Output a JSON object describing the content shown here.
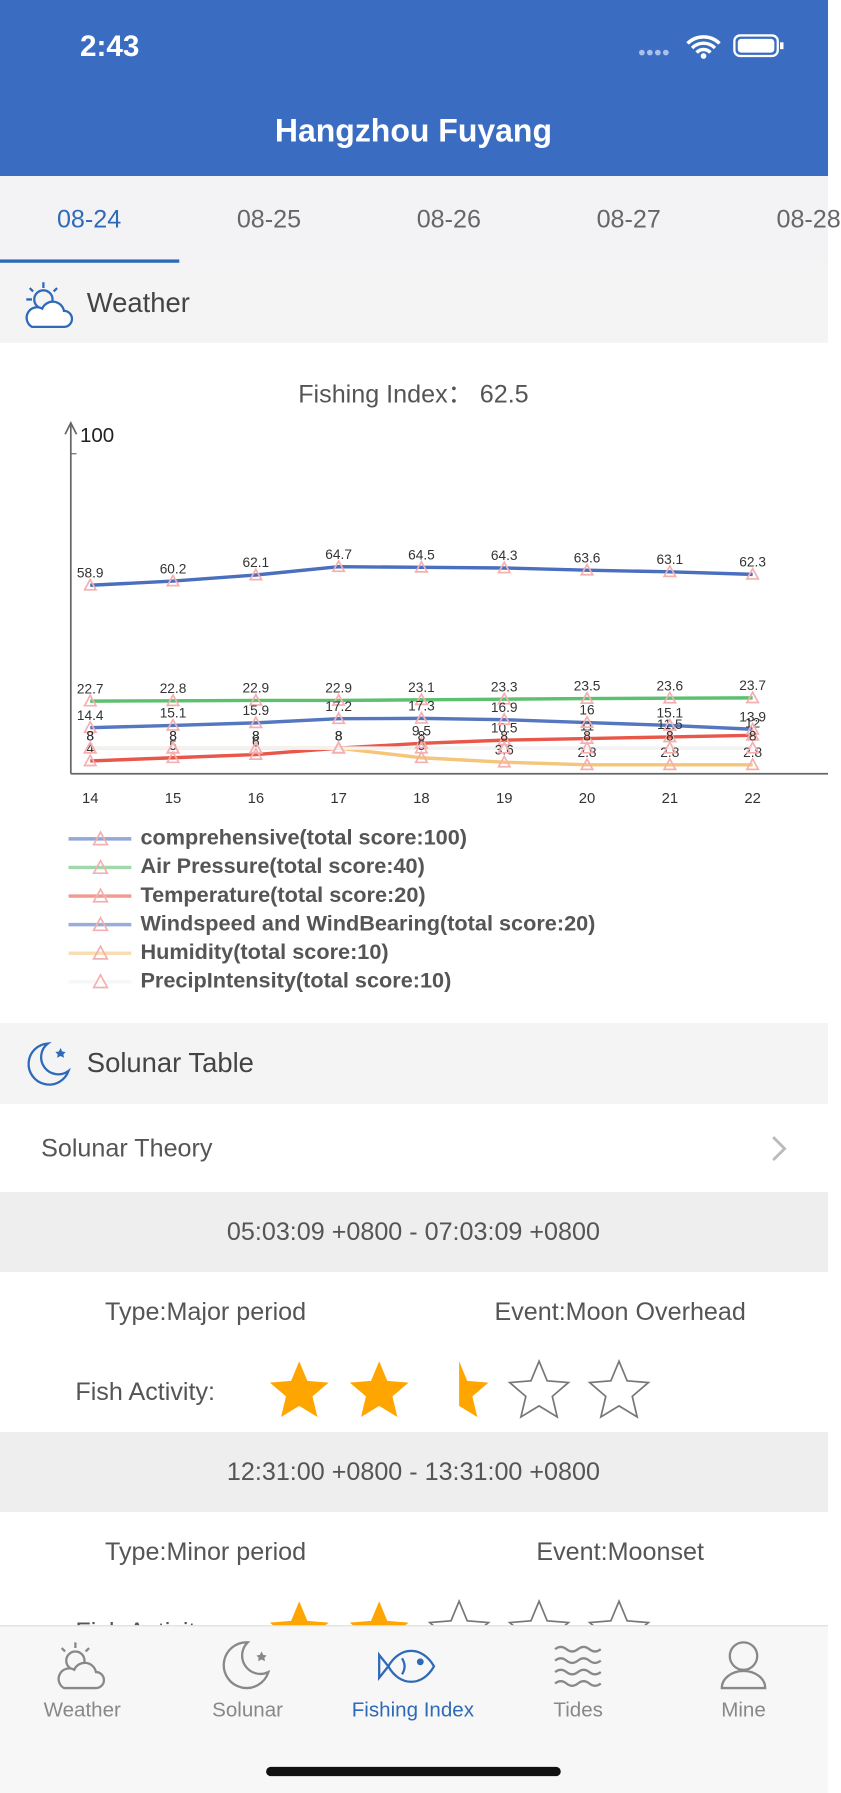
{
  "status_bar": {
    "time": "2:43"
  },
  "header": {
    "title": "Hangzhou Fuyang"
  },
  "date_tabs": [
    "08-24",
    "08-25",
    "08-26",
    "08-27",
    "08-28"
  ],
  "weather_section": {
    "title": "Weather"
  },
  "chart_data": {
    "type": "line",
    "title": "Fishing Index：  62.5",
    "categories": [
      "14",
      "15",
      "16",
      "17",
      "18",
      "19",
      "20",
      "21",
      "22"
    ],
    "ylim": [
      0,
      100
    ],
    "yticks": [
      100
    ],
    "series": [
      {
        "name": "comprehensive(total score:100)",
        "color": "#4a6fbf",
        "values": [
          58.9,
          60.2,
          62.1,
          64.7,
          64.5,
          64.3,
          63.6,
          63.1,
          62.3
        ]
      },
      {
        "name": "Air Pressure(total score:40)",
        "color": "#5cc070",
        "values": [
          22.7,
          22.8,
          22.9,
          22.9,
          23.1,
          23.3,
          23.5,
          23.6,
          23.7
        ]
      },
      {
        "name": "Temperature(total score:20)",
        "color": "#e8574a",
        "values": [
          4.0,
          5.0,
          6.0,
          8.0,
          9.5,
          10.5,
          11.0,
          11.5,
          12.0
        ]
      },
      {
        "name": "Windspeed and WindBearing(total score:20)",
        "color": "#5577c0",
        "values": [
          14.4,
          15.1,
          15.9,
          17.2,
          17.3,
          16.9,
          16.0,
          15.1,
          13.9
        ]
      },
      {
        "name": "Humidity(total score:10)",
        "color": "#f5c57a",
        "values": [
          8.0,
          8.0,
          8.0,
          8.0,
          5.0,
          3.6,
          2.8,
          2.8,
          2.8
        ]
      },
      {
        "name": "PrecipIntensity(total score:10)",
        "color": "#f2f2f2",
        "values": [
          8.0,
          8.0,
          8.0,
          8.0,
          8.0,
          8.0,
          8.0,
          8.0,
          8.0
        ]
      }
    ]
  },
  "solunar": {
    "title": "Solunar Table",
    "theory": "Solunar Theory",
    "activity_label": "Fish Activity:",
    "periods": [
      {
        "time": "05:03:09 +0800 - 07:03:09 +0800",
        "type": "Type:Major period",
        "event": "Event:Moon Overhead",
        "activity": 2.5
      },
      {
        "time": "12:31:00 +0800 - 13:31:00 +0800",
        "type": "Type:Minor period",
        "event": "Event:Moonset",
        "activity": 2
      }
    ]
  },
  "tab_bar": [
    "Weather",
    "Solunar",
    "Fishing Index",
    "Tides",
    "Mine"
  ]
}
